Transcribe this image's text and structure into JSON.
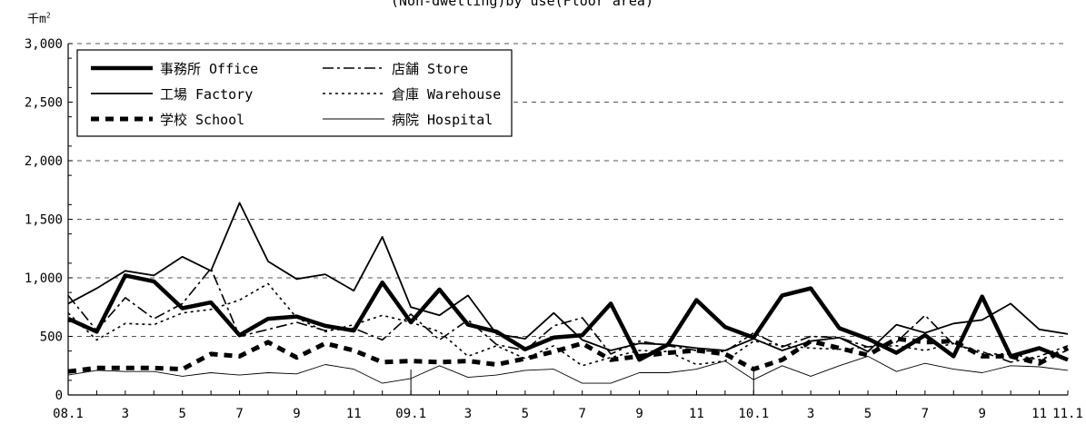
{
  "title": "(Non-dwelling)by use(Floor area)",
  "unit_label": "千m",
  "unit_sup": "2",
  "chart_data": {
    "type": "line",
    "title": "(Non-dwelling)by use(Floor area)",
    "ylabel": "千m2",
    "ylim": [
      0,
      3000
    ],
    "y_ticks": [
      "0",
      "500",
      "1,000",
      "1,500",
      "2,000",
      "2,500",
      "3,000"
    ],
    "x": [
      "08.1",
      "2",
      "3",
      "4",
      "5",
      "6",
      "7",
      "8",
      "9",
      "10",
      "11",
      "12",
      "09.1",
      "2",
      "3",
      "4",
      "5",
      "6",
      "7",
      "8",
      "9",
      "10",
      "11",
      "12",
      "10.1",
      "2",
      "3",
      "4",
      "5",
      "6",
      "7",
      "8",
      "9",
      "10",
      "11",
      "11.1"
    ],
    "x_tick_labels": [
      "08.1",
      "3",
      "5",
      "7",
      "9",
      "11",
      "09.1",
      "3",
      "5",
      "7",
      "9",
      "11",
      "10.1",
      "3",
      "5",
      "7",
      "9",
      "11",
      "11.1"
    ],
    "grid": "horizontal-dashed",
    "legend_position": "top-left",
    "series": [
      {
        "name": "事務所  Office",
        "style": "thick",
        "values": [
          650,
          540,
          1020,
          970,
          740,
          790,
          510,
          650,
          670,
          590,
          550,
          960,
          620,
          900,
          600,
          540,
          390,
          490,
          510,
          780,
          300,
          430,
          810,
          580,
          490,
          850,
          910,
          570,
          480,
          360,
          510,
          330,
          840,
          330,
          400,
          300
        ]
      },
      {
        "name": "工場  Factory",
        "style": "solid",
        "values": [
          780,
          910,
          1060,
          1020,
          1180,
          1060,
          1640,
          1140,
          990,
          1030,
          890,
          1350,
          750,
          680,
          850,
          520,
          480,
          700,
          470,
          380,
          440,
          430,
          400,
          380,
          480,
          380,
          460,
          490,
          370,
          600,
          530,
          610,
          640,
          780,
          560,
          520
        ]
      },
      {
        "name": "学校  School",
        "style": "thickdash",
        "values": [
          200,
          230,
          230,
          230,
          220,
          350,
          330,
          450,
          320,
          440,
          380,
          280,
          290,
          280,
          290,
          260,
          310,
          370,
          440,
          300,
          330,
          360,
          380,
          350,
          220,
          300,
          460,
          400,
          340,
          480,
          450,
          460,
          330,
          330,
          270,
          400
        ]
      },
      {
        "name": "店舗  Store",
        "style": "dashdot",
        "values": [
          850,
          550,
          830,
          650,
          780,
          1080,
          500,
          560,
          620,
          550,
          570,
          470,
          690,
          470,
          640,
          430,
          380,
          590,
          660,
          350,
          460,
          420,
          380,
          370,
          530,
          410,
          500,
          490,
          410,
          450,
          680,
          430,
          370,
          280,
          330,
          420
        ]
      },
      {
        "name": "倉庫  Warehouse",
        "style": "dotted",
        "values": [
          700,
          470,
          610,
          600,
          700,
          730,
          810,
          950,
          660,
          540,
          600,
          680,
          620,
          540,
          330,
          420,
          310,
          420,
          250,
          320,
          380,
          370,
          260,
          290,
          460,
          420,
          400,
          390,
          410,
          420,
          380,
          440,
          350,
          350,
          300,
          380
        ]
      },
      {
        "name": "病院  Hospital",
        "style": "thin",
        "values": [
          170,
          210,
          200,
          200,
          160,
          190,
          170,
          190,
          180,
          260,
          220,
          100,
          140,
          250,
          150,
          170,
          210,
          220,
          100,
          100,
          190,
          190,
          220,
          290,
          130,
          250,
          160,
          250,
          330,
          200,
          270,
          220,
          190,
          250,
          240,
          210
        ]
      }
    ]
  }
}
